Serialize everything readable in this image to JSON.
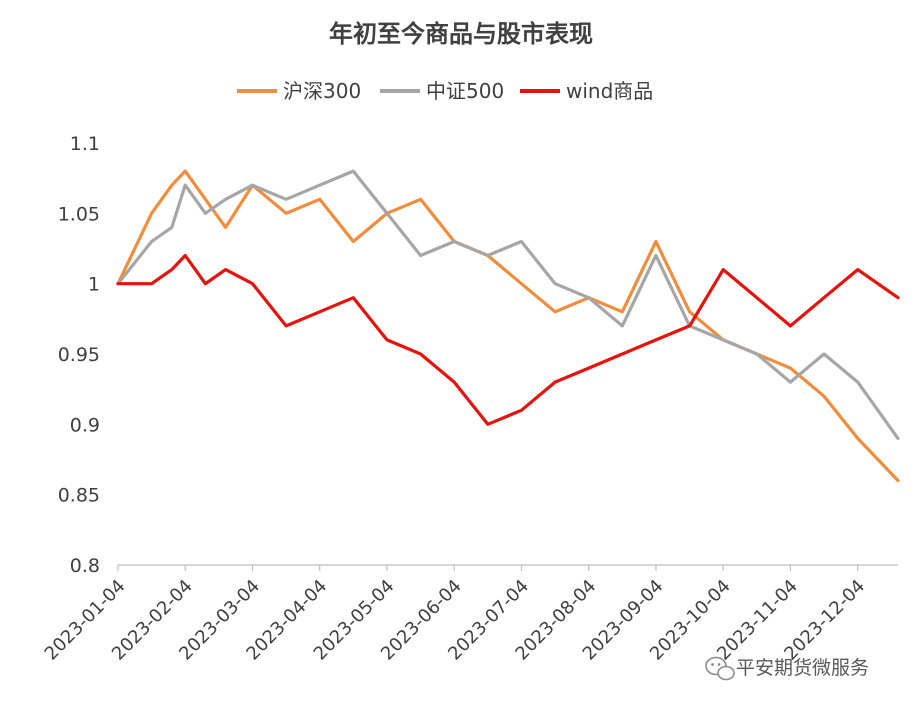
{
  "chart_data": {
    "type": "line",
    "title": "年初至今商品与股市表现",
    "xlabel": "",
    "ylabel": "",
    "ylim": [
      0.8,
      1.1
    ],
    "yticks": [
      "1.1",
      "1.05",
      "1",
      "0.95",
      "0.9",
      "0.85",
      "0.8"
    ],
    "xticks": [
      "2023-01-04",
      "2023-02-04",
      "2023-03-04",
      "2023-04-04",
      "2023-05-04",
      "2023-06-04",
      "2023-07-04",
      "2023-08-04",
      "2023-09-04",
      "2023-10-04",
      "2023-11-04",
      "2023-12-04"
    ],
    "grid": false,
    "legend": "top",
    "x_months": [
      0,
      0.5,
      0.8,
      1,
      1.3,
      1.6,
      2,
      2.5,
      3,
      3.5,
      4,
      4.5,
      5,
      5.5,
      6,
      6.5,
      7,
      7.5,
      8,
      8.5,
      9,
      9.5,
      10,
      10.5,
      11,
      11.6
    ],
    "series": [
      {
        "name": "沪深300",
        "color": "#F28C3A",
        "values": [
          1.0,
          1.05,
          1.07,
          1.08,
          1.06,
          1.04,
          1.07,
          1.05,
          1.06,
          1.03,
          1.05,
          1.06,
          1.03,
          1.02,
          1.0,
          0.98,
          0.99,
          0.98,
          1.03,
          0.98,
          0.96,
          0.95,
          0.94,
          0.92,
          0.89,
          0.86
        ]
      },
      {
        "name": "中证500",
        "color": "#A6A6A6",
        "values": [
          1.0,
          1.03,
          1.04,
          1.07,
          1.05,
          1.06,
          1.07,
          1.06,
          1.07,
          1.08,
          1.05,
          1.02,
          1.03,
          1.02,
          1.03,
          1.0,
          0.99,
          0.97,
          1.02,
          0.97,
          0.96,
          0.95,
          0.93,
          0.95,
          0.93,
          0.89
        ]
      },
      {
        "name": "wind商品",
        "color": "#E8120C",
        "values": [
          1.0,
          1.0,
          1.01,
          1.02,
          1.0,
          1.01,
          1.0,
          0.97,
          0.98,
          0.99,
          0.96,
          0.95,
          0.93,
          0.9,
          0.91,
          0.93,
          0.94,
          0.95,
          0.96,
          0.97,
          1.01,
          0.99,
          0.97,
          0.99,
          1.01,
          0.99
        ]
      }
    ]
  },
  "watermark": {
    "text": "平安期货微服务",
    "icon": "wechat-icon"
  }
}
